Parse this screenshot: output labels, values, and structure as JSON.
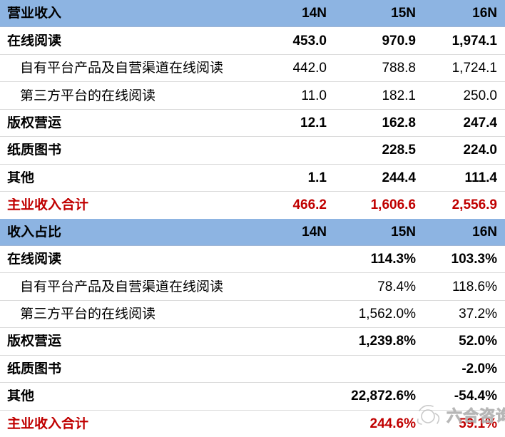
{
  "chart_data": {
    "type": "table",
    "sections": [
      {
        "header_label": "营业收入",
        "columns": [
          "14N",
          "15N",
          "16N"
        ],
        "rows": [
          {
            "label": "在线阅读",
            "bold": true,
            "indent": false,
            "red": false,
            "values": [
              "453.0",
              "970.9",
              "1,974.1"
            ]
          },
          {
            "label": "自有平台产品及自营渠道在线阅读",
            "bold": false,
            "indent": true,
            "red": false,
            "values": [
              "442.0",
              "788.8",
              "1,724.1"
            ]
          },
          {
            "label": "第三方平台的在线阅读",
            "bold": false,
            "indent": true,
            "red": false,
            "values": [
              "11.0",
              "182.1",
              "250.0"
            ]
          },
          {
            "label": "版权营运",
            "bold": true,
            "indent": false,
            "red": false,
            "values": [
              "12.1",
              "162.8",
              "247.4"
            ]
          },
          {
            "label": "纸质图书",
            "bold": true,
            "indent": false,
            "red": false,
            "values": [
              "",
              "228.5",
              "224.0"
            ]
          },
          {
            "label": "其他",
            "bold": true,
            "indent": false,
            "red": false,
            "values": [
              "1.1",
              "244.4",
              "111.4"
            ]
          },
          {
            "label": "主业收入合计",
            "bold": true,
            "indent": false,
            "red": true,
            "values": [
              "466.2",
              "1,606.6",
              "2,556.9"
            ]
          }
        ]
      },
      {
        "header_label": "收入占比",
        "columns": [
          "14N",
          "15N",
          "16N"
        ],
        "rows": [
          {
            "label": "在线阅读",
            "bold": true,
            "indent": false,
            "red": false,
            "values": [
              "",
              "114.3%",
              "103.3%"
            ]
          },
          {
            "label": "自有平台产品及自营渠道在线阅读",
            "bold": false,
            "indent": true,
            "red": false,
            "values": [
              "",
              "78.4%",
              "118.6%"
            ]
          },
          {
            "label": "第三方平台的在线阅读",
            "bold": false,
            "indent": true,
            "red": false,
            "values": [
              "",
              "1,562.0%",
              "37.2%"
            ]
          },
          {
            "label": "版权营运",
            "bold": true,
            "indent": false,
            "red": false,
            "values": [
              "",
              "1,239.8%",
              "52.0%"
            ]
          },
          {
            "label": "纸质图书",
            "bold": true,
            "indent": false,
            "red": false,
            "values": [
              "",
              "",
              "-2.0%"
            ]
          },
          {
            "label": "其他",
            "bold": true,
            "indent": false,
            "red": false,
            "values": [
              "",
              "22,872.6%",
              "-54.4%"
            ]
          },
          {
            "label": "主业收入合计",
            "bold": true,
            "indent": false,
            "red": true,
            "values": [
              "",
              "244.6%",
              "59.1%"
            ]
          }
        ]
      }
    ]
  },
  "watermark": {
    "text": "六合咨询"
  },
  "colors": {
    "header_bg": "#8DB4E2",
    "accent_red": "#C00000",
    "row_separator": "#DBDBDB",
    "text": "#000000",
    "watermark_gray": "#C3C3C3"
  }
}
